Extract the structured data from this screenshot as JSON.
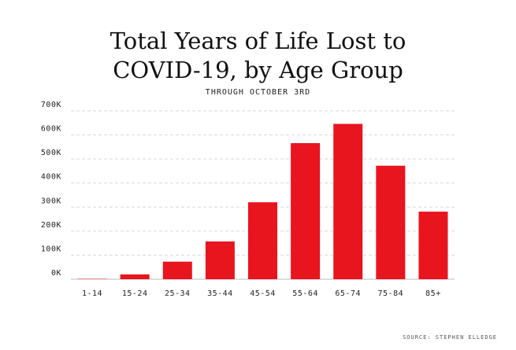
{
  "chart_data": {
    "type": "bar",
    "title": [
      "Total Years of Life Lost to",
      "COVID-19, by Age Group"
    ],
    "subtitle": "THROUGH OCTOBER 3RD",
    "categories": [
      "1-14",
      "15-24",
      "25-34",
      "35-44",
      "45-54",
      "55-64",
      "65-74",
      "75-84",
      "85+"
    ],
    "values": [
      1500,
      20000,
      73000,
      157000,
      320000,
      566000,
      646000,
      472000,
      281000
    ],
    "ylim": [
      0,
      700000
    ],
    "yticks": [
      0,
      100000,
      200000,
      300000,
      400000,
      500000,
      600000,
      700000
    ],
    "ytick_labels": [
      "0K",
      "100K",
      "200K",
      "300K",
      "400K",
      "500K",
      "600K",
      "700K"
    ],
    "xlabel": "",
    "ylabel": "",
    "grid": true,
    "bar_color": "#e8141e",
    "source": "SOURCE: STEPHEN ELLEDGE"
  }
}
